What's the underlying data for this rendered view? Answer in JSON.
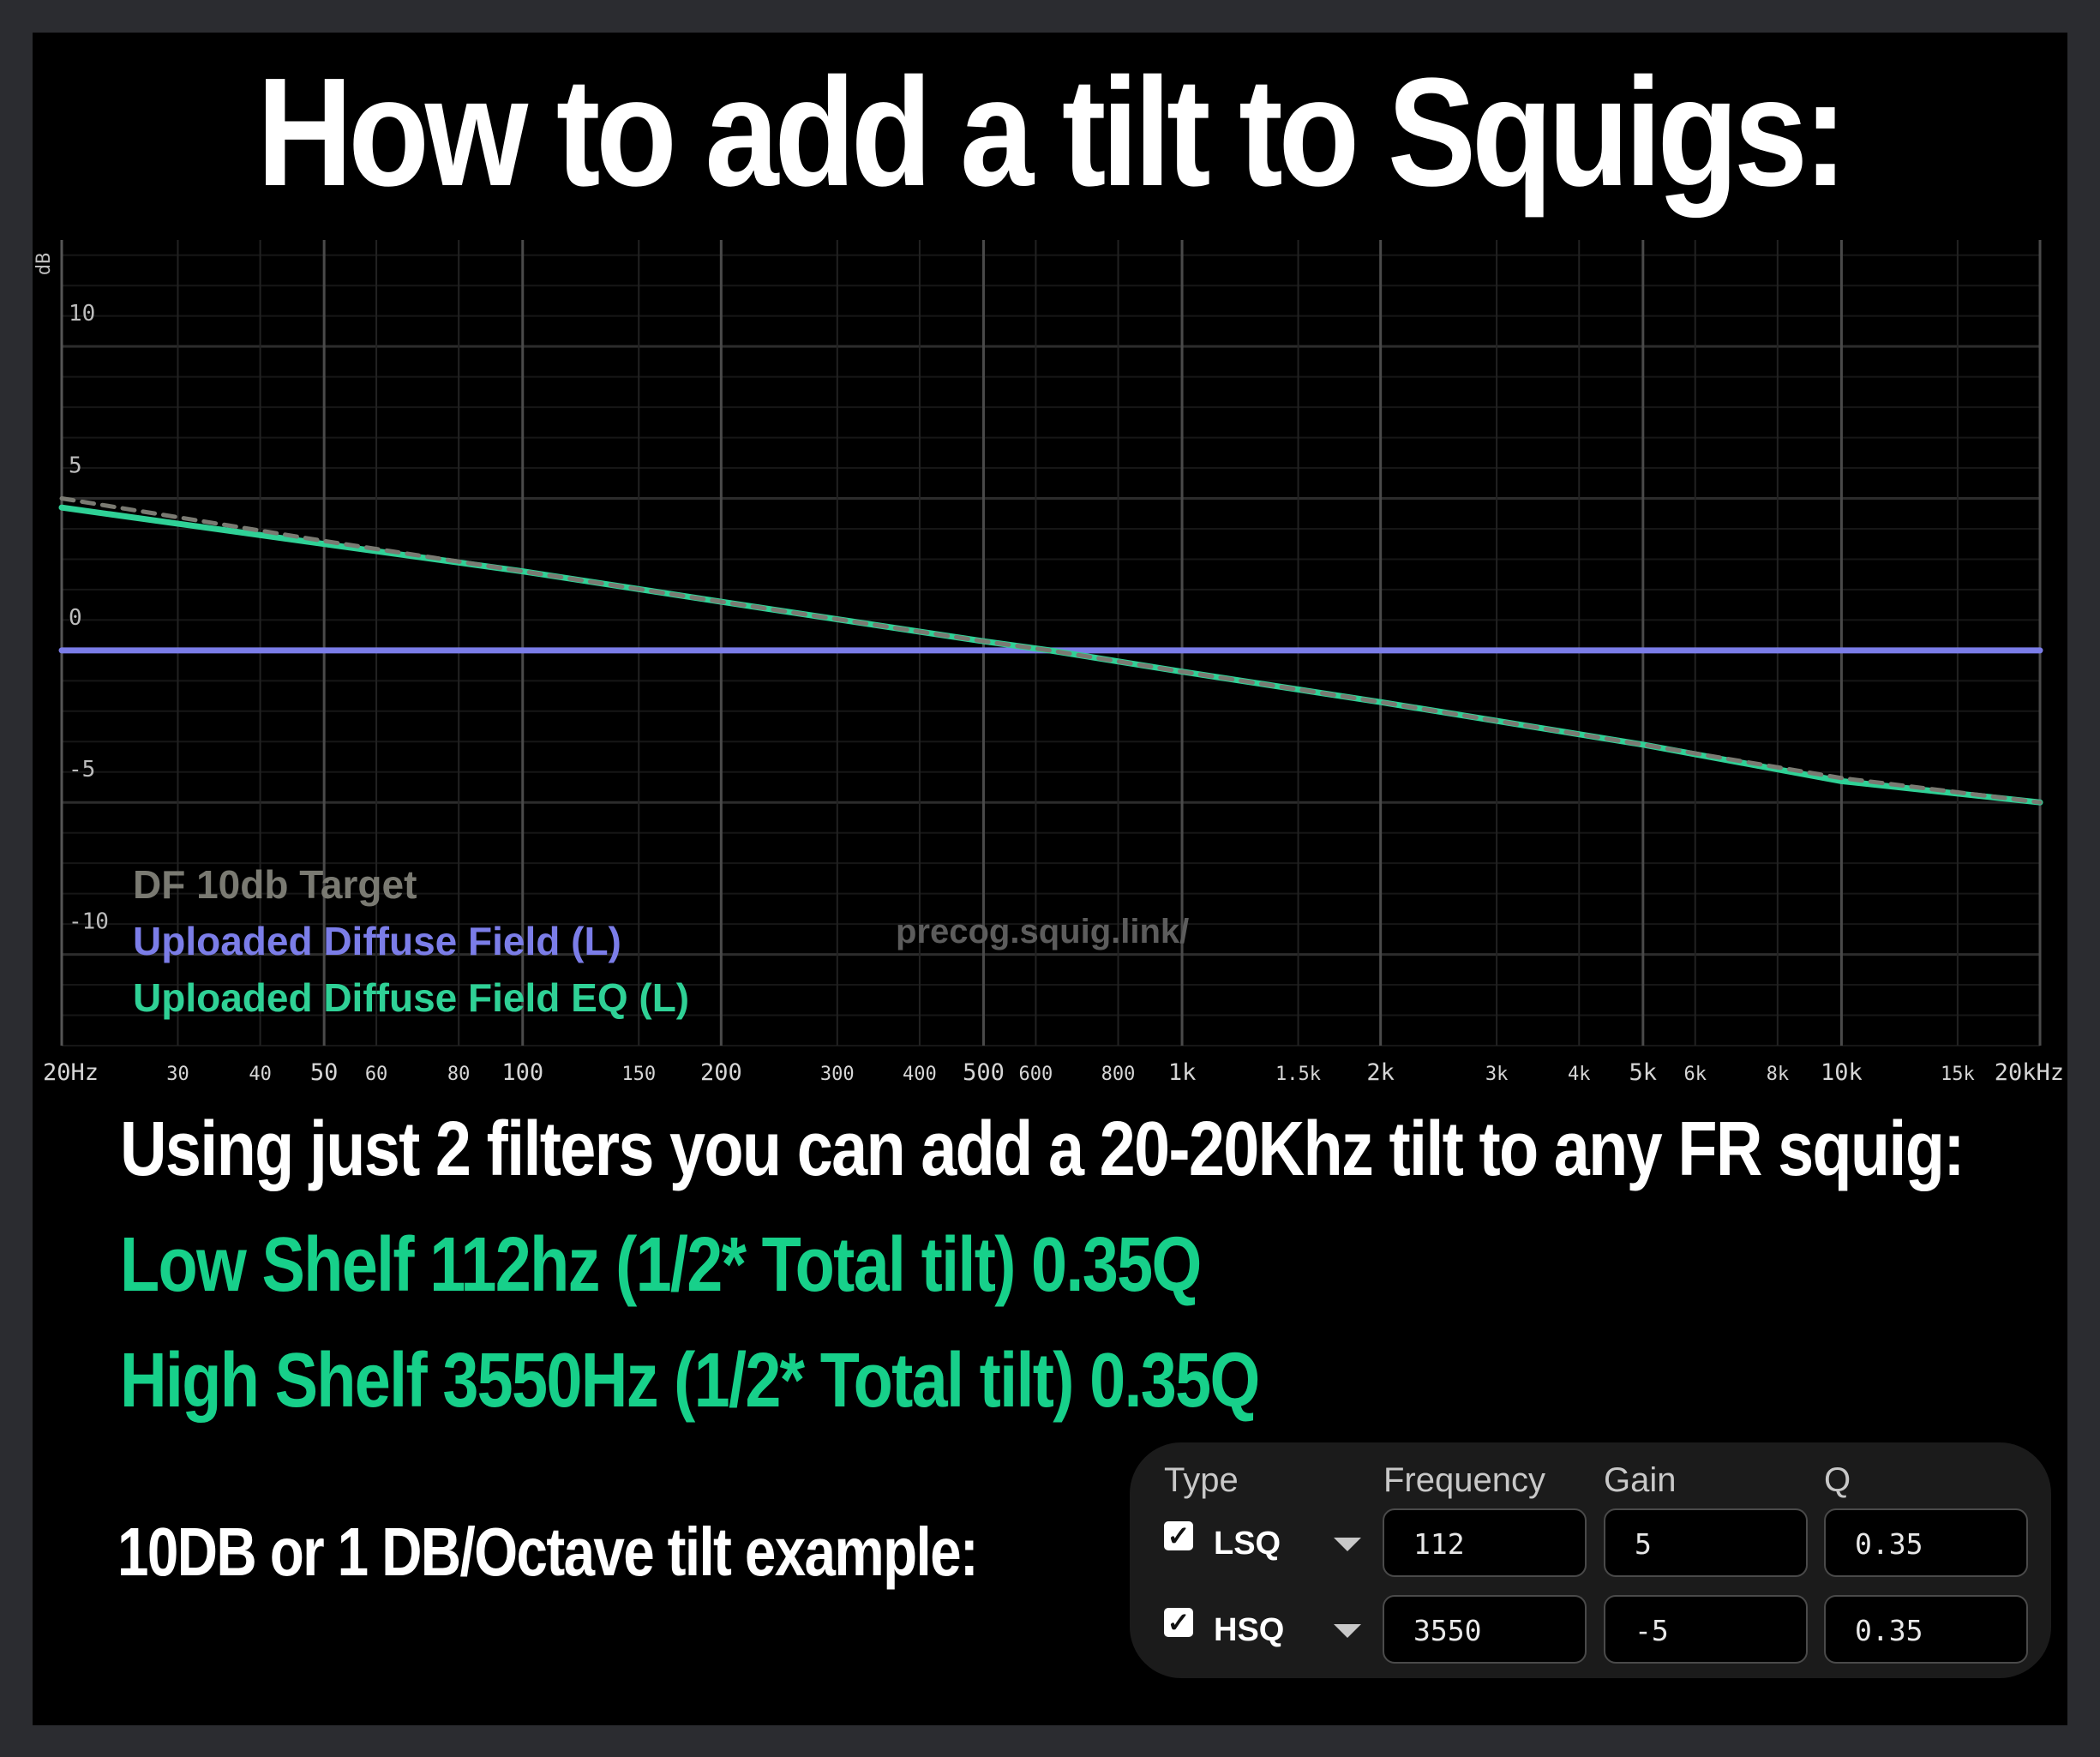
{
  "title": "How to add a tilt to Squigs:",
  "chart_data": {
    "type": "line",
    "ylabel": "dB",
    "xscale": "log",
    "xlim": [
      20,
      20000
    ],
    "ylim": [
      -13,
      13.5
    ],
    "yticks": [
      10,
      5,
      0,
      -5,
      -10
    ],
    "xticks": [
      {
        "value": 20,
        "label": "20Hz",
        "major": true
      },
      {
        "value": 30,
        "label": "30",
        "major": false
      },
      {
        "value": 40,
        "label": "40",
        "major": false
      },
      {
        "value": 50,
        "label": "50",
        "major": true
      },
      {
        "value": 60,
        "label": "60",
        "major": false
      },
      {
        "value": 80,
        "label": "80",
        "major": false
      },
      {
        "value": 100,
        "label": "100",
        "major": true
      },
      {
        "value": 150,
        "label": "150",
        "major": false
      },
      {
        "value": 200,
        "label": "200",
        "major": true
      },
      {
        "value": 300,
        "label": "300",
        "major": false
      },
      {
        "value": 400,
        "label": "400",
        "major": false
      },
      {
        "value": 500,
        "label": "500",
        "major": true
      },
      {
        "value": 600,
        "label": "600",
        "major": false
      },
      {
        "value": 800,
        "label": "800",
        "major": false
      },
      {
        "value": 1000,
        "label": "1k",
        "major": true
      },
      {
        "value": 1500,
        "label": "1.5k",
        "major": false
      },
      {
        "value": 2000,
        "label": "2k",
        "major": true
      },
      {
        "value": 3000,
        "label": "3k",
        "major": false
      },
      {
        "value": 4000,
        "label": "4k",
        "major": false
      },
      {
        "value": 5000,
        "label": "5k",
        "major": true
      },
      {
        "value": 6000,
        "label": "6k",
        "major": false
      },
      {
        "value": 8000,
        "label": "8k",
        "major": false
      },
      {
        "value": 10000,
        "label": "10k",
        "major": true
      },
      {
        "value": 15000,
        "label": "15k",
        "major": false
      },
      {
        "value": 20000,
        "label": "20kHz",
        "major": true
      }
    ],
    "series": [
      {
        "name": "DF 10db Target",
        "color": "#7a7a72",
        "style": "dashed",
        "x": [
          20,
          50,
          100,
          200,
          500,
          630,
          1000,
          2000,
          5000,
          10000,
          20000
        ],
        "y": [
          5.0,
          3.6,
          2.6,
          1.6,
          0.3,
          0.0,
          -0.7,
          -1.7,
          -3.1,
          -4.2,
          -5.0
        ]
      },
      {
        "name": "Uploaded Diffuse Field (L)",
        "color": "#7b7de8",
        "style": "solid",
        "x": [
          20,
          20000
        ],
        "y": [
          0,
          0
        ]
      },
      {
        "name": "Uploaded Diffuse Field EQ (L)",
        "color": "#2fd196",
        "style": "solid",
        "x": [
          20,
          50,
          100,
          200,
          500,
          630,
          1000,
          2000,
          5000,
          10000,
          20000
        ],
        "y": [
          4.7,
          3.5,
          2.6,
          1.6,
          0.3,
          0.0,
          -0.7,
          -1.7,
          -3.1,
          -4.3,
          -5.0
        ]
      }
    ],
    "watermark": "precog.squig.link/",
    "legend_position": "bottom-left",
    "grid": true
  },
  "captions": {
    "line1": "Using just 2 filters you can add a 20-20Khz tilt to any FR squig:",
    "line2": "Low Shelf 112hz (1/2* Total tilt) 0.35Q",
    "line3": "High Shelf 3550Hz (1/2* Total tilt) 0.35Q",
    "example": "10DB or 1 DB/Octave tilt example:"
  },
  "eq_table": {
    "headers": {
      "type": "Type",
      "frequency": "Frequency",
      "gain": "Gain",
      "q": "Q"
    },
    "rows": [
      {
        "checked": true,
        "type": "LSQ",
        "frequency": "112",
        "gain": "5",
        "q": "0.35"
      },
      {
        "checked": true,
        "type": "HSQ",
        "frequency": "3550",
        "gain": "-5",
        "q": "0.35"
      }
    ]
  }
}
